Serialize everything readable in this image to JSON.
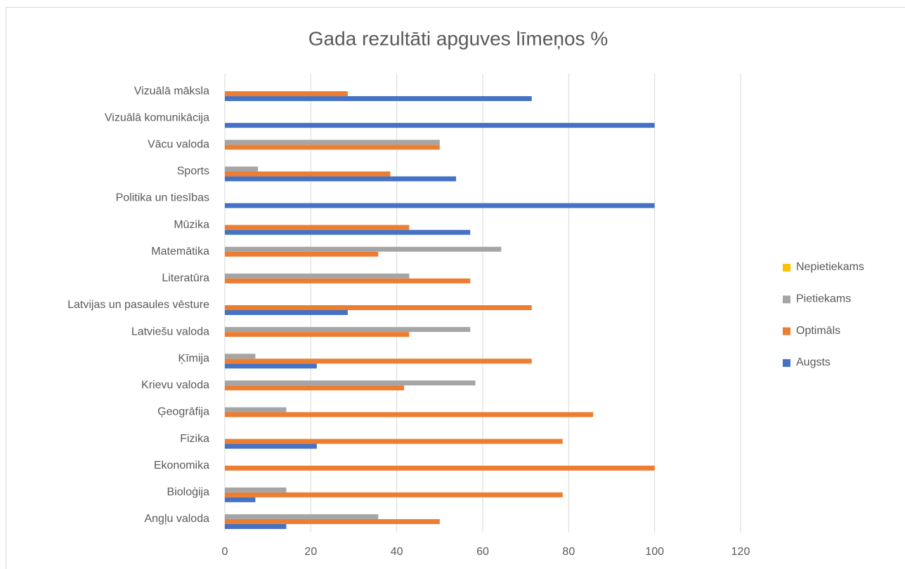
{
  "chart_data": {
    "type": "hbar",
    "title": "Gada rezultāti apguves līmeņos %",
    "categories": [
      "Angļu valoda",
      "Bioloģija",
      "Ekonomika",
      "Fizika",
      "Ģeogrāfija",
      "Krievu valoda",
      "Ķīmija",
      "Latviešu valoda",
      "Latvijas un pasaules vēsture",
      "Literatūra",
      "Matemātika",
      "Mūzika",
      "Politika un tiesības",
      "Sports",
      "Vācu valoda",
      "Vizuālā komunikācija",
      "Vizuālā māksla"
    ],
    "series": [
      {
        "name": "Augsts",
        "color": "#4472c4",
        "values": [
          14.3,
          7.1,
          0,
          21.4,
          0,
          0,
          21.4,
          0,
          28.6,
          0,
          0,
          57.1,
          100,
          53.8,
          0,
          100,
          71.4
        ]
      },
      {
        "name": "Optimāls",
        "color": "#ed7d31",
        "values": [
          50,
          78.6,
          100,
          78.6,
          85.7,
          41.7,
          71.4,
          42.9,
          71.4,
          57.1,
          35.7,
          42.9,
          0,
          38.5,
          50,
          0,
          28.6
        ]
      },
      {
        "name": "Pietiekams",
        "color": "#a5a5a5",
        "values": [
          35.7,
          14.3,
          0,
          0,
          14.3,
          58.3,
          7.1,
          57.1,
          0,
          42.9,
          64.3,
          0,
          0,
          7.7,
          50,
          0,
          0
        ]
      },
      {
        "name": "Nepietiekams",
        "color": "#ffc000",
        "values": [
          0,
          0,
          0,
          0,
          0,
          0,
          0,
          0,
          0,
          0,
          0,
          0,
          0,
          0,
          0,
          0,
          0
        ]
      }
    ],
    "xlim": [
      0,
      120
    ],
    "xticks": [
      0,
      20,
      40,
      60,
      80,
      100,
      120
    ],
    "grid": true,
    "legend": "right"
  }
}
